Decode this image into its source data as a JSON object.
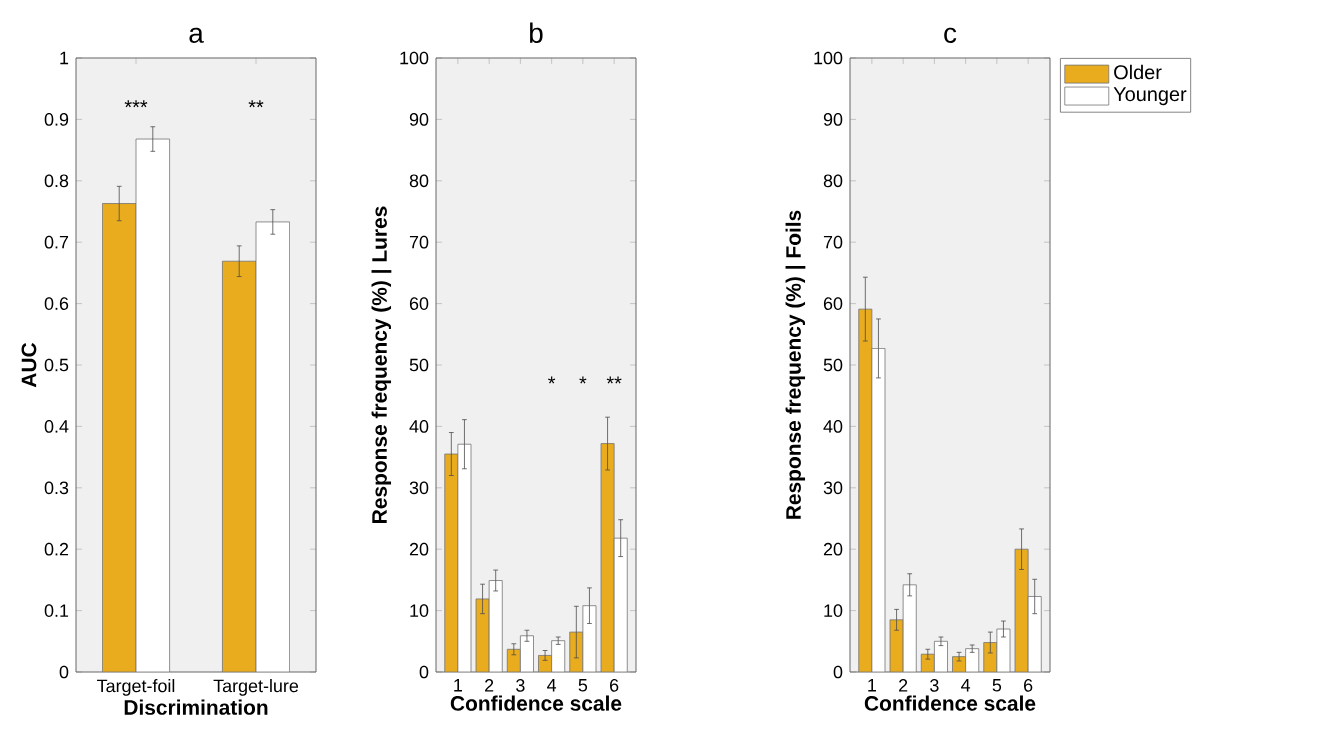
{
  "chart_data": [
    {
      "type": "bar",
      "title": "a",
      "xlabel": "Discrimination",
      "ylabel": "AUC",
      "categories": [
        "Target-foil",
        "Target-lure"
      ],
      "ylim": [
        0,
        1
      ],
      "yticks": [
        0,
        0.1,
        0.2,
        0.3,
        0.4,
        0.5,
        0.6,
        0.7,
        0.8,
        0.9,
        1
      ],
      "grid": false,
      "legend": false,
      "series": [
        {
          "color": "#e8ac1e",
          "values": [
            0.763,
            0.669
          ],
          "errors": [
            0.028,
            0.025
          ]
        },
        {
          "color": "#ffffff",
          "values": [
            0.868,
            0.733
          ],
          "errors": [
            0.02,
            0.02
          ]
        }
      ],
      "annotations": [
        "***",
        "**"
      ]
    },
    {
      "type": "bar",
      "title": "b",
      "xlabel": "Confidence scale",
      "ylabel": "Response frequency (%) | Lures",
      "categories": [
        "1",
        "2",
        "3",
        "4",
        "5",
        "6"
      ],
      "ylim": [
        0,
        100
      ],
      "yticks": [
        0,
        10,
        20,
        30,
        40,
        50,
        60,
        70,
        80,
        90,
        100
      ],
      "grid": false,
      "legend": false,
      "series": [
        {
          "color": "#e8ac1e",
          "values": [
            35.5,
            11.9,
            3.7,
            2.7,
            6.5,
            37.2
          ],
          "errors": [
            3.5,
            2.4,
            0.9,
            0.8,
            4.2,
            4.3
          ]
        },
        {
          "color": "#ffffff",
          "values": [
            37.1,
            14.9,
            5.9,
            5.1,
            10.8,
            21.8
          ],
          "errors": [
            4,
            1.7,
            0.9,
            0.6,
            2.9,
            3
          ]
        }
      ],
      "annotations": [
        "*",
        "*",
        "**"
      ]
    },
    {
      "type": "bar",
      "title": "c",
      "xlabel": "Confidence scale",
      "ylabel": "Response frequency (%) | Foils",
      "categories": [
        "1",
        "2",
        "3",
        "4",
        "5",
        "6"
      ],
      "ylim": [
        0,
        100
      ],
      "yticks": [
        0,
        10,
        20,
        30,
        40,
        50,
        60,
        70,
        80,
        90,
        100
      ],
      "grid": false,
      "legend": "right",
      "series": [
        {
          "name": "Older",
          "color": "#e8ac1e",
          "values": [
            59.1,
            8.5,
            2.9,
            2.5,
            4.8,
            20
          ],
          "errors": [
            5.2,
            1.7,
            0.8,
            0.7,
            1.7,
            3.3
          ]
        },
        {
          "name": "Younger",
          "color": "#ffffff",
          "values": [
            52.7,
            14.2,
            5,
            3.8,
            7,
            12.3
          ],
          "errors": [
            4.8,
            1.8,
            0.7,
            0.6,
            1.3,
            2.8
          ]
        }
      ]
    }
  ]
}
